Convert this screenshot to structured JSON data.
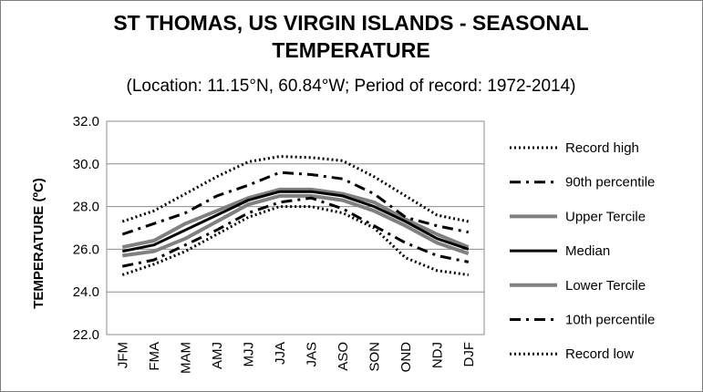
{
  "chart_data": {
    "type": "line",
    "title": "ST THOMAS, US VIRGIN ISLANDS - SEASONAL TEMPERATURE",
    "title_lines": [
      "ST THOMAS, US VIRGIN ISLANDS - SEASONAL",
      "TEMPERATURE"
    ],
    "subtitle": "(Location: 11.15°N, 60.84°W; Period of record: 1972-2014)",
    "xlabel": "",
    "ylabel": "TEMPERATURE (ºC)",
    "ylim": [
      22.0,
      32.0
    ],
    "yticks": [
      "22.0",
      "24.0",
      "26.0",
      "28.0",
      "30.0",
      "32.0"
    ],
    "categories": [
      "JFM",
      "FMA",
      "MAM",
      "AMJ",
      "MJJ",
      "JJA",
      "JAS",
      "ASO",
      "SON",
      "OND",
      "NDJ",
      "DJF"
    ],
    "grid": "horizontal",
    "legend_position": "right",
    "series": [
      {
        "name": "Record high",
        "style": "dotted",
        "color": "#000000",
        "values": [
          27.3,
          27.8,
          28.6,
          29.4,
          30.1,
          30.35,
          30.3,
          30.15,
          29.4,
          28.5,
          27.6,
          27.3
        ]
      },
      {
        "name": "90th percentile",
        "style": "dashdot",
        "color": "#000000",
        "values": [
          26.7,
          27.2,
          27.7,
          28.5,
          29.0,
          29.6,
          29.5,
          29.3,
          28.6,
          27.5,
          27.1,
          26.8
        ]
      },
      {
        "name": "Upper Tercile",
        "style": "solid-gray",
        "color": "#808080",
        "values": [
          26.1,
          26.4,
          27.2,
          27.8,
          28.4,
          28.8,
          28.8,
          28.6,
          28.2,
          27.4,
          26.7,
          26.1
        ]
      },
      {
        "name": "Median",
        "style": "solid",
        "color": "#000000",
        "values": [
          25.9,
          26.2,
          26.9,
          27.6,
          28.3,
          28.7,
          28.7,
          28.5,
          28.0,
          27.3,
          26.5,
          26.0
        ]
      },
      {
        "name": "Lower Tercile",
        "style": "solid-gray",
        "color": "#808080",
        "values": [
          25.7,
          25.9,
          26.5,
          27.3,
          28.1,
          28.5,
          28.5,
          28.3,
          27.8,
          27.1,
          26.3,
          25.8
        ]
      },
      {
        "name": "10th percentile",
        "style": "dashdot",
        "color": "#000000",
        "values": [
          25.2,
          25.5,
          26.2,
          26.9,
          27.7,
          28.2,
          28.4,
          27.9,
          27.1,
          26.3,
          25.7,
          25.4
        ]
      },
      {
        "name": "Record low",
        "style": "dotted",
        "color": "#000000",
        "values": [
          24.8,
          25.3,
          25.9,
          26.7,
          27.5,
          28.0,
          28.0,
          27.7,
          27.0,
          25.6,
          25.0,
          24.8
        ]
      }
    ]
  }
}
